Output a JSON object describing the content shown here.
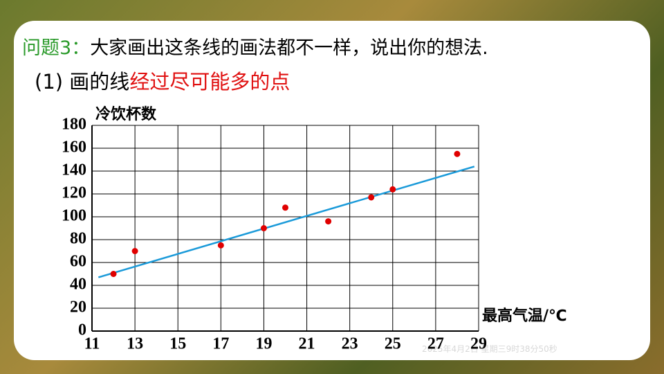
{
  "slide": {
    "question_label": "问题3：",
    "question": "大家画出这条线的画法都不一样，说出你的想法.",
    "step": "(1) 画的线",
    "step_highlight": "经过尽可能多的点",
    "watermark": "2025年4月2日 星期三9时38分50秒"
  },
  "chart_data": {
    "type": "scatter",
    "y_label": "冷饮杯数",
    "x_label": "最高气温/℃",
    "x": [
      12,
      13,
      17,
      19,
      20,
      22,
      24,
      25,
      28
    ],
    "values": [
      50,
      70,
      75,
      90,
      108,
      96,
      117,
      124,
      155
    ],
    "color": "#e00000",
    "fit_line": {
      "x": [
        11.3,
        28.8
      ],
      "values": [
        47,
        144
      ],
      "color": "#1a9ad9"
    },
    "xlim": [
      11,
      29
    ],
    "xticks": [
      11,
      13,
      15,
      17,
      19,
      21,
      23,
      25,
      27,
      29
    ],
    "ylim": [
      0,
      180
    ],
    "yticks": [
      0,
      20,
      40,
      60,
      80,
      100,
      120,
      140,
      160,
      180
    ],
    "grid": true
  }
}
